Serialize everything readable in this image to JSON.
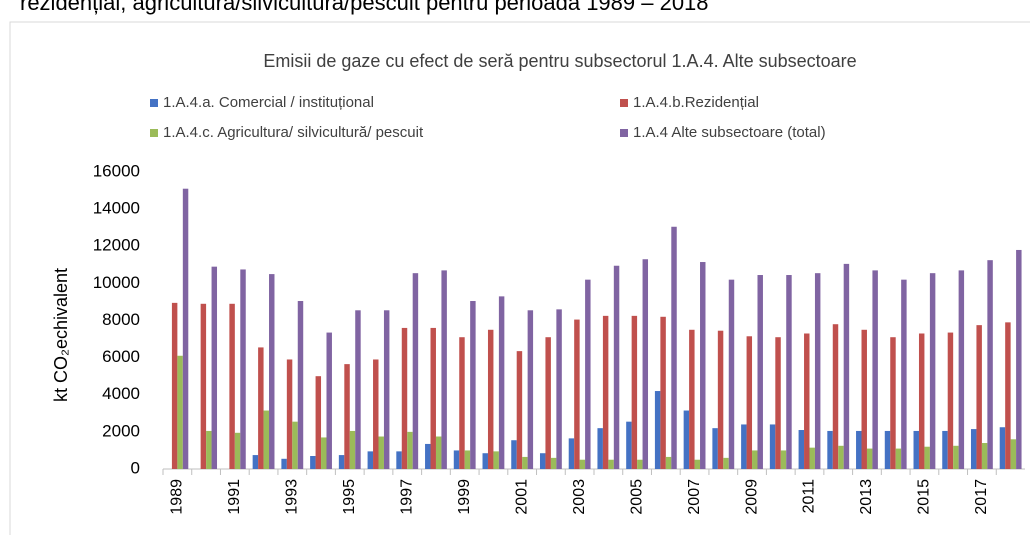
{
  "caption": "rezidențial, agricultura/silvicultura/pescuit pentru perioada 1989 – 2018",
  "chart_data": {
    "type": "bar",
    "title": "Emisii de gaze cu efect de seră pentru subsectorul 1.A.4. Alte subsectoare",
    "y_label": "kt CO₂echivalent",
    "categories": [
      "1989",
      null,
      "1991",
      null,
      "1993",
      null,
      "1995",
      null,
      "1997",
      null,
      "1999",
      null,
      "2001",
      null,
      "2003",
      null,
      "2005",
      null,
      "2007",
      null,
      "2009",
      null,
      "2011",
      null,
      "2013",
      null,
      "2015",
      null,
      "2017",
      null
    ],
    "series": [
      {
        "name": "1.A.4.a. Comercial / instituțional",
        "color": "#4472c4",
        "values": [
          0,
          0,
          0,
          750,
          550,
          700,
          750,
          950,
          950,
          1350,
          1000,
          850,
          1550,
          850,
          1650,
          2200,
          2550,
          4200,
          3150,
          2200,
          2400,
          2400,
          2100,
          2050,
          2050,
          2050,
          2050,
          2050,
          2150,
          2250
        ]
      },
      {
        "name": "1.A.4.b.Rezidențial",
        "color": "#c0504d",
        "values": [
          8950,
          8900,
          8900,
          6550,
          5900,
          5000,
          5650,
          5900,
          7600,
          7600,
          7100,
          7500,
          6350,
          7100,
          8050,
          8250,
          8250,
          8200,
          7500,
          7450,
          7150,
          7100,
          7300,
          7800,
          7500,
          7100,
          7300,
          7350,
          7750,
          7900
        ]
      },
      {
        "name": "1.A.4.c. Agricultura/ silvicultură/ pescuit",
        "color": "#9bbb59",
        "values": [
          6100,
          2050,
          1950,
          3150,
          2550,
          1700,
          2050,
          1750,
          2000,
          1750,
          1000,
          950,
          650,
          600,
          500,
          500,
          500,
          650,
          500,
          600,
          1000,
          1000,
          1150,
          1250,
          1100,
          1100,
          1200,
          1250,
          1400,
          1600
        ]
      },
      {
        "name": "1.A.4 Alte subsectoare (total)",
        "color": "#8064a2",
        "values": [
          15100,
          10900,
          10750,
          10500,
          9050,
          7350,
          8550,
          8550,
          10550,
          10700,
          9050,
          9300,
          8550,
          8600,
          10200,
          10950,
          11300,
          13050,
          11150,
          10200,
          10450,
          10450,
          10550,
          11050,
          10700,
          10200,
          10550,
          10700,
          11250,
          11800
        ]
      }
    ],
    "ylim": [
      0,
      16000
    ],
    "yticks": [
      0,
      2000,
      4000,
      6000,
      8000,
      10000,
      12000,
      14000,
      16000
    ],
    "grid": false
  }
}
